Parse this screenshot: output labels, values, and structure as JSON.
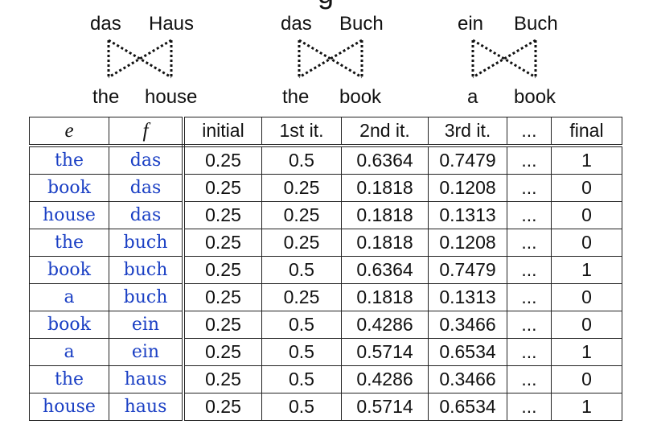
{
  "diagrams": [
    {
      "top": [
        "das",
        "Haus"
      ],
      "bottom": [
        "the",
        "house"
      ]
    },
    {
      "top": [
        "das",
        "Buch"
      ],
      "bottom": [
        "the",
        "book"
      ]
    },
    {
      "top": [
        "ein",
        "Buch"
      ],
      "bottom": [
        "a",
        "book"
      ]
    }
  ],
  "table": {
    "headers": [
      "e",
      "f",
      "initial",
      "1st it.",
      "2nd it.",
      "3rd it.",
      "...",
      "final"
    ],
    "rows": [
      [
        "the",
        "das",
        "0.25",
        "0.5",
        "0.6364",
        "0.7479",
        "...",
        "1"
      ],
      [
        "book",
        "das",
        "0.25",
        "0.25",
        "0.1818",
        "0.1208",
        "...",
        "0"
      ],
      [
        "house",
        "das",
        "0.25",
        "0.25",
        "0.1818",
        "0.1313",
        "...",
        "0"
      ],
      [
        "the",
        "buch",
        "0.25",
        "0.25",
        "0.1818",
        "0.1208",
        "...",
        "0"
      ],
      [
        "book",
        "buch",
        "0.25",
        "0.5",
        "0.6364",
        "0.7479",
        "...",
        "1"
      ],
      [
        "a",
        "buch",
        "0.25",
        "0.25",
        "0.1818",
        "0.1313",
        "...",
        "0"
      ],
      [
        "book",
        "ein",
        "0.25",
        "0.5",
        "0.4286",
        "0.3466",
        "...",
        "0"
      ],
      [
        "a",
        "ein",
        "0.25",
        "0.5",
        "0.5714",
        "0.6534",
        "...",
        "1"
      ],
      [
        "the",
        "haus",
        "0.25",
        "0.5",
        "0.4286",
        "0.3466",
        "...",
        "0"
      ],
      [
        "house",
        "haus",
        "0.25",
        "0.5",
        "0.5714",
        "0.6534",
        "...",
        "1"
      ]
    ]
  },
  "colors": {
    "word_blue": "#1a3fc4",
    "text": "#111111"
  }
}
